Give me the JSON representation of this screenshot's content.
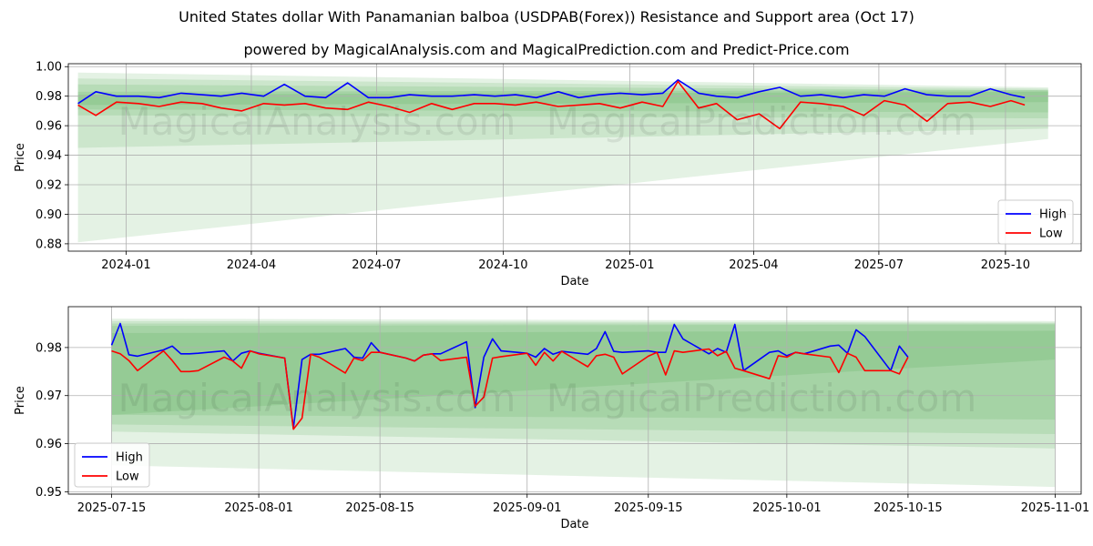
{
  "header": {
    "title": "United States dollar With Panamanian balboa (USDPAB(Forex)) Resistance and Support area (Oct 17)",
    "subtitle": "powered by MagicalAnalysis.com and MagicalPrediction.com and Predict-Price.com"
  },
  "watermarks": [
    "MagicalAnalysis.com",
    "MagicalPrediction.com"
  ],
  "colors": {
    "high": "#0000ff",
    "low": "#ff0000",
    "band": "#2e9e2e",
    "grid": "#b0b0b0"
  },
  "chart_data": [
    {
      "type": "line",
      "xlabel": "Date",
      "ylabel": "Price",
      "x_ticks": [
        "2024-01",
        "2024-04",
        "2024-07",
        "2024-10",
        "2025-01",
        "2025-04",
        "2025-07",
        "2025-10"
      ],
      "y_ticks": [
        "0.88",
        "0.90",
        "0.92",
        "0.94",
        "0.96",
        "0.98",
        "1.00"
      ],
      "x_range": [
        "2023-11-20",
        "2025-11-25"
      ],
      "ylim": [
        0.875,
        1.002
      ],
      "grid": true,
      "legend": "bottom-right",
      "bands_start": "2023-11-27",
      "bands_end": "2025-11-01",
      "bands": [
        {
          "top_start": 0.996,
          "top_end": 0.986,
          "bot_start": 0.881,
          "bot_end": 0.951
        },
        {
          "top_start": 0.992,
          "top_end": 0.985,
          "bot_start": 0.945,
          "bot_end": 0.958
        },
        {
          "top_start": 0.988,
          "top_end": 0.984,
          "bot_start": 0.967,
          "bot_end": 0.965
        },
        {
          "top_start": 0.983,
          "top_end": 0.984,
          "bot_start": 0.971,
          "bot_end": 0.969
        },
        {
          "top_start": 0.981,
          "top_end": 0.983,
          "bot_start": 0.974,
          "bot_end": 0.976
        }
      ],
      "series": [
        {
          "name": "High",
          "dates": [
            "2023-11-27",
            "2023-12-10",
            "2023-12-25",
            "2024-01-10",
            "2024-01-25",
            "2024-02-10",
            "2024-02-25",
            "2024-03-10",
            "2024-03-25",
            "2024-04-10",
            "2024-04-25",
            "2024-05-10",
            "2024-05-25",
            "2024-06-10",
            "2024-06-25",
            "2024-07-10",
            "2024-07-25",
            "2024-08-10",
            "2024-08-25",
            "2024-09-10",
            "2024-09-25",
            "2024-10-10",
            "2024-10-25",
            "2024-11-10",
            "2024-11-25",
            "2024-12-10",
            "2024-12-25",
            "2025-01-10",
            "2025-01-25",
            "2025-02-05",
            "2025-02-20",
            "2025-03-05",
            "2025-03-20",
            "2025-04-05",
            "2025-04-20",
            "2025-05-05",
            "2025-05-20",
            "2025-06-05",
            "2025-06-20",
            "2025-07-05",
            "2025-07-20",
            "2025-08-05",
            "2025-08-20",
            "2025-09-05",
            "2025-09-20",
            "2025-10-05",
            "2025-10-15"
          ],
          "values": [
            0.975,
            0.983,
            0.98,
            0.98,
            0.979,
            0.982,
            0.981,
            0.98,
            0.982,
            0.98,
            0.988,
            0.98,
            0.979,
            0.989,
            0.979,
            0.979,
            0.981,
            0.98,
            0.98,
            0.981,
            0.98,
            0.981,
            0.979,
            0.983,
            0.979,
            0.981,
            0.982,
            0.981,
            0.982,
            0.991,
            0.982,
            0.98,
            0.979,
            0.983,
            0.986,
            0.98,
            0.981,
            0.979,
            0.981,
            0.98,
            0.985,
            0.981,
            0.98,
            0.98,
            0.985,
            0.981,
            0.979
          ]
        },
        {
          "name": "Low",
          "dates": [
            "2023-11-27",
            "2023-12-10",
            "2023-12-25",
            "2024-01-10",
            "2024-01-25",
            "2024-02-10",
            "2024-02-25",
            "2024-03-10",
            "2024-03-25",
            "2024-04-10",
            "2024-04-25",
            "2024-05-10",
            "2024-05-25",
            "2024-06-10",
            "2024-06-25",
            "2024-07-10",
            "2024-07-25",
            "2024-08-10",
            "2024-08-25",
            "2024-09-10",
            "2024-09-25",
            "2024-10-10",
            "2024-10-25",
            "2024-11-10",
            "2024-11-25",
            "2024-12-10",
            "2024-12-25",
            "2025-01-10",
            "2025-01-25",
            "2025-02-05",
            "2025-02-20",
            "2025-03-05",
            "2025-03-20",
            "2025-04-05",
            "2025-04-20",
            "2025-05-05",
            "2025-05-20",
            "2025-06-05",
            "2025-06-20",
            "2025-07-05",
            "2025-07-20",
            "2025-08-05",
            "2025-08-20",
            "2025-09-05",
            "2025-09-20",
            "2025-10-05",
            "2025-10-15"
          ],
          "values": [
            0.974,
            0.967,
            0.976,
            0.975,
            0.973,
            0.976,
            0.975,
            0.972,
            0.97,
            0.975,
            0.974,
            0.975,
            0.972,
            0.971,
            0.976,
            0.973,
            0.969,
            0.975,
            0.971,
            0.975,
            0.975,
            0.974,
            0.976,
            0.973,
            0.974,
            0.975,
            0.972,
            0.976,
            0.973,
            0.99,
            0.972,
            0.975,
            0.964,
            0.968,
            0.958,
            0.976,
            0.975,
            0.973,
            0.967,
            0.977,
            0.974,
            0.963,
            0.975,
            0.976,
            0.973,
            0.977,
            0.974
          ]
        }
      ]
    },
    {
      "type": "line",
      "xlabel": "Date",
      "ylabel": "Price",
      "x_ticks": [
        "2025-07-15",
        "2025-08-01",
        "2025-08-15",
        "2025-09-01",
        "2025-09-15",
        "2025-10-01",
        "2025-10-15",
        "2025-11-01"
      ],
      "y_ticks": [
        "0.95",
        "0.96",
        "0.97",
        "0.98"
      ],
      "x_range": [
        "2025-07-10",
        "2025-11-04"
      ],
      "ylim": [
        0.9495,
        0.9885
      ],
      "grid": true,
      "legend": "bottom-left",
      "bands_start": "2025-07-15",
      "bands_end": "2025-11-01",
      "bands": [
        {
          "top_start": 0.986,
          "top_end": 0.9855,
          "bot_start": 0.9555,
          "bot_end": 0.951
        },
        {
          "top_start": 0.9855,
          "top_end": 0.9852,
          "bot_start": 0.9625,
          "bot_end": 0.959
        },
        {
          "top_start": 0.985,
          "top_end": 0.985,
          "bot_start": 0.964,
          "bot_end": 0.962
        },
        {
          "top_start": 0.9845,
          "top_end": 0.9848,
          "bot_start": 0.966,
          "bot_end": 0.965
        },
        {
          "top_start": 0.983,
          "top_end": 0.9835,
          "bot_start": 0.966,
          "bot_end": 0.9775
        }
      ],
      "series": [
        {
          "name": "High",
          "dates": [
            "2025-07-15",
            "2025-07-16",
            "2025-07-17",
            "2025-07-18",
            "2025-07-21",
            "2025-07-22",
            "2025-07-23",
            "2025-07-24",
            "2025-07-25",
            "2025-07-28",
            "2025-07-29",
            "2025-07-30",
            "2025-07-31",
            "2025-08-01",
            "2025-08-04",
            "2025-08-05",
            "2025-08-06",
            "2025-08-07",
            "2025-08-08",
            "2025-08-11",
            "2025-08-12",
            "2025-08-13",
            "2025-08-14",
            "2025-08-15",
            "2025-08-18",
            "2025-08-19",
            "2025-08-20",
            "2025-08-21",
            "2025-08-22",
            "2025-08-25",
            "2025-08-26",
            "2025-08-27",
            "2025-08-28",
            "2025-08-29",
            "2025-09-01",
            "2025-09-02",
            "2025-09-03",
            "2025-09-04",
            "2025-09-05",
            "2025-09-08",
            "2025-09-09",
            "2025-09-10",
            "2025-09-11",
            "2025-09-12",
            "2025-09-15",
            "2025-09-16",
            "2025-09-17",
            "2025-09-18",
            "2025-09-19",
            "2025-09-22",
            "2025-09-23",
            "2025-09-24",
            "2025-09-25",
            "2025-09-26",
            "2025-09-29",
            "2025-09-30",
            "2025-10-01",
            "2025-10-02",
            "2025-10-03",
            "2025-10-06",
            "2025-10-07",
            "2025-10-08",
            "2025-10-09",
            "2025-10-10",
            "2025-10-13",
            "2025-10-14",
            "2025-10-15"
          ],
          "values": [
            0.9805,
            0.985,
            0.9785,
            0.9782,
            0.9795,
            0.9803,
            0.9787,
            0.9787,
            0.9788,
            0.9793,
            0.9772,
            0.9788,
            0.9793,
            0.9788,
            0.9778,
            0.9632,
            0.9775,
            0.9786,
            0.9786,
            0.9798,
            0.978,
            0.9778,
            0.981,
            0.979,
            0.9778,
            0.9772,
            0.9784,
            0.9787,
            0.9787,
            0.9812,
            0.9675,
            0.978,
            0.9818,
            0.9793,
            0.9788,
            0.978,
            0.9798,
            0.9786,
            0.9792,
            0.9786,
            0.9798,
            0.9833,
            0.9792,
            0.979,
            0.9793,
            0.979,
            0.979,
            0.9848,
            0.9818,
            0.9787,
            0.9798,
            0.979,
            0.9848,
            0.9752,
            0.979,
            0.9793,
            0.9783,
            0.979,
            0.9787,
            0.9803,
            0.9805,
            0.9788,
            0.9837,
            0.9823,
            0.9752,
            0.9803,
            0.978
          ]
        },
        {
          "name": "Low",
          "dates": [
            "2025-07-15",
            "2025-07-16",
            "2025-07-17",
            "2025-07-18",
            "2025-07-21",
            "2025-07-22",
            "2025-07-23",
            "2025-07-24",
            "2025-07-25",
            "2025-07-28",
            "2025-07-29",
            "2025-07-30",
            "2025-07-31",
            "2025-08-01",
            "2025-08-04",
            "2025-08-05",
            "2025-08-06",
            "2025-08-07",
            "2025-08-08",
            "2025-08-11",
            "2025-08-12",
            "2025-08-13",
            "2025-08-14",
            "2025-08-15",
            "2025-08-18",
            "2025-08-19",
            "2025-08-20",
            "2025-08-21",
            "2025-08-22",
            "2025-08-25",
            "2025-08-26",
            "2025-08-27",
            "2025-08-28",
            "2025-08-29",
            "2025-09-01",
            "2025-09-02",
            "2025-09-03",
            "2025-09-04",
            "2025-09-05",
            "2025-09-08",
            "2025-09-09",
            "2025-09-10",
            "2025-09-11",
            "2025-09-12",
            "2025-09-15",
            "2025-09-16",
            "2025-09-17",
            "2025-09-18",
            "2025-09-19",
            "2025-09-22",
            "2025-09-23",
            "2025-09-24",
            "2025-09-25",
            "2025-09-26",
            "2025-09-29",
            "2025-09-30",
            "2025-10-01",
            "2025-10-02",
            "2025-10-03",
            "2025-10-06",
            "2025-10-07",
            "2025-10-08",
            "2025-10-09",
            "2025-10-10",
            "2025-10-13",
            "2025-10-14",
            "2025-10-15"
          ],
          "values": [
            0.9793,
            0.9787,
            0.9773,
            0.9752,
            0.9793,
            0.9773,
            0.975,
            0.975,
            0.9752,
            0.978,
            0.9772,
            0.9757,
            0.9793,
            0.9787,
            0.9778,
            0.963,
            0.9653,
            0.9786,
            0.978,
            0.9747,
            0.9778,
            0.9773,
            0.979,
            0.979,
            0.9778,
            0.9772,
            0.9784,
            0.9787,
            0.9773,
            0.978,
            0.9678,
            0.9697,
            0.9778,
            0.9781,
            0.9788,
            0.9763,
            0.979,
            0.9772,
            0.9792,
            0.976,
            0.9783,
            0.9786,
            0.978,
            0.9745,
            0.9782,
            0.979,
            0.9743,
            0.9793,
            0.979,
            0.9797,
            0.9783,
            0.9792,
            0.9757,
            0.9752,
            0.9735,
            0.9783,
            0.978,
            0.979,
            0.9787,
            0.978,
            0.9748,
            0.9788,
            0.978,
            0.9752,
            0.9752,
            0.9745,
            0.978
          ]
        }
      ]
    }
  ]
}
